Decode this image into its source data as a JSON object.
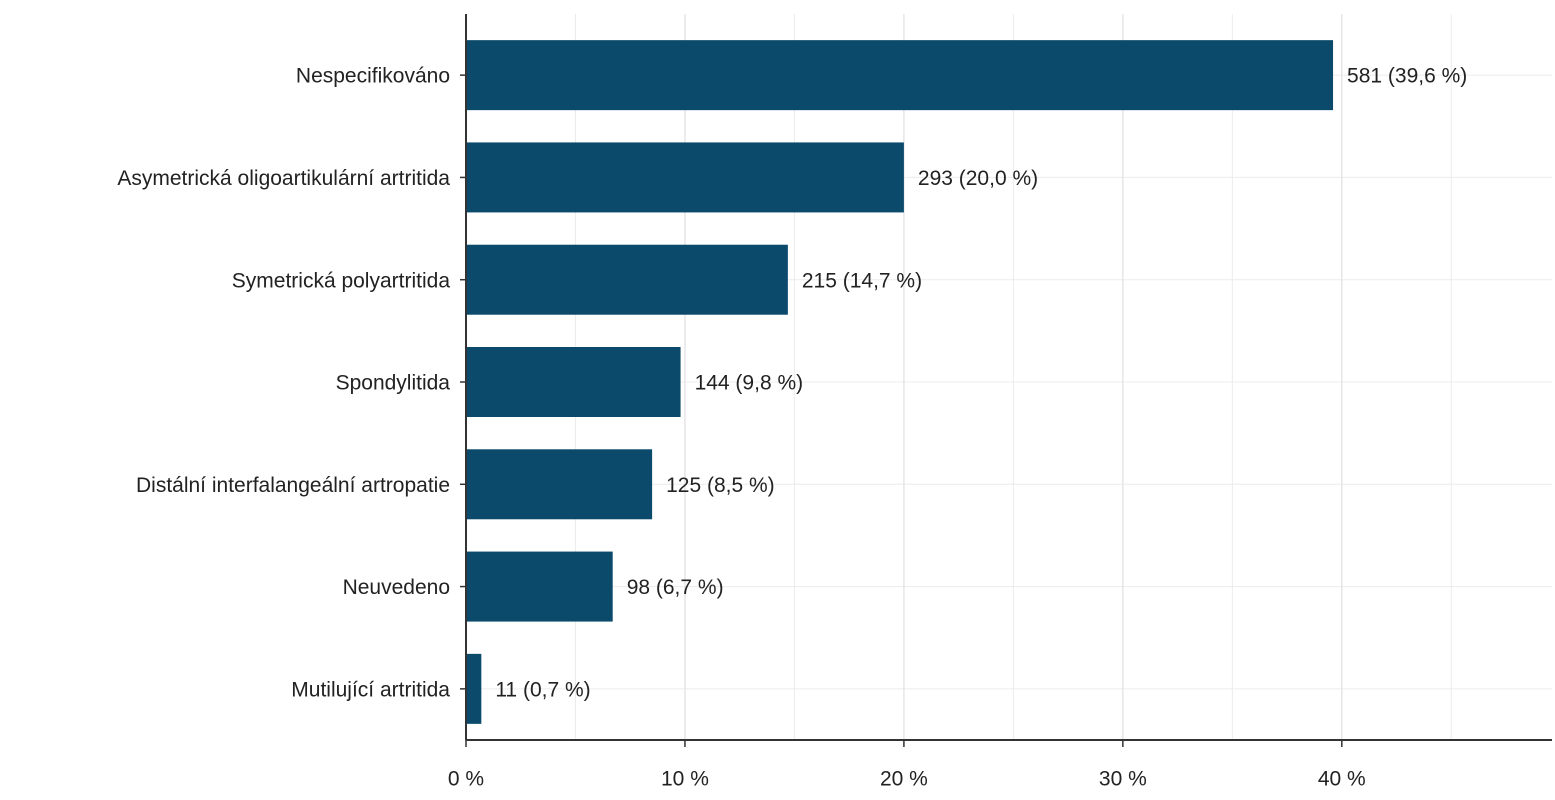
{
  "chart_data": {
    "type": "bar",
    "orientation": "horizontal",
    "categories": [
      "Nespecifikováno",
      "Asymetrická oligoartikulární artritida",
      "Symetrická polyartritida",
      "Spondylitida",
      "Distální interfalangeální artropatie",
      "Neuvedeno",
      "Mutilující artritida"
    ],
    "values": [
      39.6,
      20.0,
      14.7,
      9.8,
      8.5,
      6.7,
      0.7
    ],
    "value_labels": [
      "581 (39,6 %)",
      "293 (20,0 %)",
      "215 (14,7 %)",
      "144 (9,8 %)",
      "125 (8,5 %)",
      "98 (6,7 %)",
      "11 (0,7 %)"
    ],
    "color": "#0b4a6b",
    "xlim": [
      0,
      49.6
    ],
    "xticks": [
      {
        "value": 0,
        "label": "0 %"
      },
      {
        "value": 10,
        "label": "10 %"
      },
      {
        "value": 20,
        "label": "20 %"
      },
      {
        "value": 30,
        "label": "30 %"
      },
      {
        "value": 40,
        "label": "40 %"
      }
    ],
    "grid": true,
    "minor_grid": true
  }
}
